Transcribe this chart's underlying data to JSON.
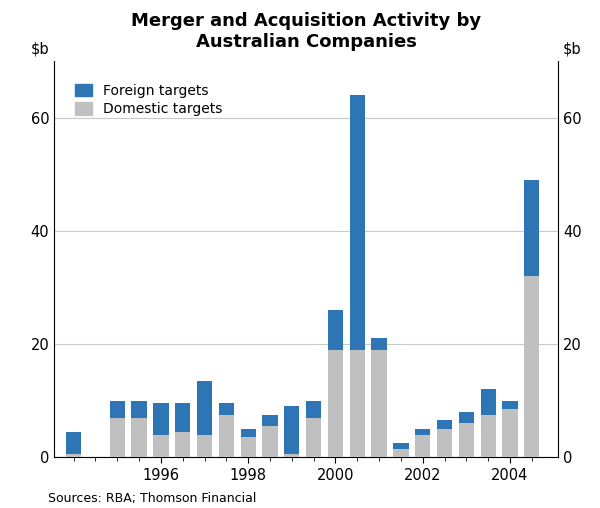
{
  "title": "Merger and Acquisition Activity by\nAustralian Companies",
  "source": "Sources: RBA; Thomson Financial",
  "foreign_color": "#2E75B6",
  "domestic_color": "#C0C0C0",
  "ylim": [
    0,
    70
  ],
  "yticks": [
    0,
    20,
    40,
    60
  ],
  "bar_width": 0.35,
  "legend_labels": [
    "Foreign targets",
    "Domestic targets"
  ],
  "x_positions": [
    1994.0,
    1994.5,
    1995.0,
    1995.5,
    1996.0,
    1996.5,
    1997.0,
    1997.5,
    1998.0,
    1998.5,
    1999.0,
    1999.5,
    2000.0,
    2000.5,
    2001.0,
    2001.5,
    2002.0,
    2002.5,
    2003.0,
    2003.5,
    2004.0,
    2004.5
  ],
  "foreign_values": [
    4.0,
    0.0,
    3.0,
    3.0,
    5.5,
    5.0,
    9.5,
    2.0,
    1.5,
    2.0,
    8.5,
    3.0,
    7.0,
    45.0,
    2.0,
    1.0,
    1.0,
    1.5,
    2.0,
    4.5,
    1.5,
    17.0
  ],
  "domestic_values": [
    0.5,
    0.0,
    7.0,
    7.0,
    4.0,
    4.5,
    4.0,
    7.5,
    3.5,
    5.5,
    0.5,
    7.0,
    19.0,
    19.0,
    19.0,
    1.5,
    4.0,
    5.0,
    6.0,
    7.5,
    8.5,
    32.0
  ],
  "xtick_positions": [
    1996,
    1998,
    2000,
    2002,
    2004
  ],
  "xtick_labels": [
    "1996",
    "1998",
    "2000",
    "2002",
    "2004"
  ],
  "xlim": [
    1993.55,
    2005.1
  ],
  "grid_color": "#C8C8C8",
  "background_color": "#FFFFFF",
  "title_fontsize": 13,
  "tick_fontsize": 10.5,
  "source_fontsize": 9
}
